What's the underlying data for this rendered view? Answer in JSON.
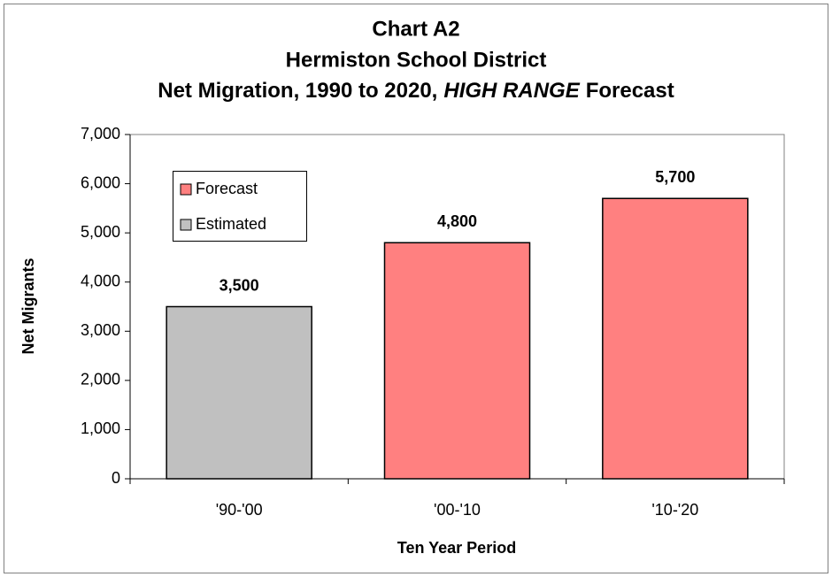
{
  "chart_data": {
    "type": "bar",
    "title": [
      "Chart A2",
      "Hermiston School District",
      [
        "Net Migration, 1990 to 2020,",
        "HIGH RANGE",
        "Forecast"
      ]
    ],
    "x_label": "Ten Year Period",
    "y_label": "Net Migrants",
    "categories": [
      "'90-'00",
      "'00-'10",
      "'10-'20"
    ],
    "series": [
      {
        "name": "Forecast",
        "color": "#ff8080",
        "values": [
          null,
          4800,
          5700
        ],
        "value_labels": [
          null,
          "4,800",
          "5,700"
        ]
      },
      {
        "name": "Estimated",
        "color": "#c0c0c0",
        "values": [
          3500,
          null,
          null
        ],
        "value_labels": [
          "3,500",
          null,
          null
        ]
      }
    ],
    "ylim": [
      0,
      7000
    ],
    "yticks": [
      0,
      {
        "value": 1000,
        "label": "1,000"
      },
      {
        "value": 2000,
        "label": "2,000"
      },
      {
        "value": 3000,
        "label": "3,000"
      },
      {
        "value": 4000,
        "label": "4,000"
      },
      {
        "value": 5000,
        "label": "5,000"
      },
      {
        "value": 6000,
        "label": "6,000"
      },
      {
        "value": 7000,
        "label": "7,000"
      }
    ],
    "grid": false,
    "legend": "upper left"
  }
}
